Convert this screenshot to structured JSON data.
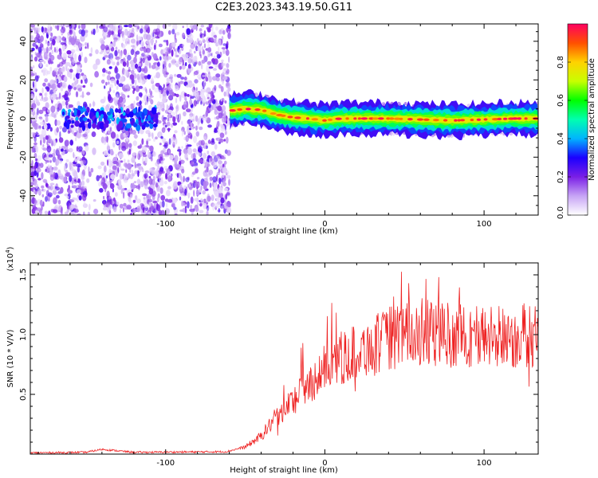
{
  "title": "C2E3.2023.343.19.50.G11",
  "chart_data": [
    {
      "type": "heatmap",
      "xlabel": "Height of straight line (km)",
      "ylabel": "Frequency (Hz)",
      "xlim": [
        -185,
        134
      ],
      "ylim": [
        -50,
        49
      ],
      "x_ticks": [
        -100,
        0,
        100
      ],
      "y_ticks": [
        -40,
        -20,
        0,
        20,
        40
      ],
      "colorbar": {
        "label": "Normalized spectral amplitude",
        "range": [
          0.0,
          1.0
        ],
        "ticks": [
          "0.0",
          "0.2",
          "0.4",
          "0.6",
          "0.8"
        ],
        "colors": [
          "#ffffff",
          "#c7a4f5",
          "#7a1fe6",
          "#1b00ff",
          "#00b4ff",
          "#00ffb0",
          "#00ff00",
          "#c8ff00",
          "#ffd200",
          "#ff5000",
          "#ff0060"
        ]
      },
      "noise_region_x": [
        -185,
        -60
      ],
      "gap_region_x": [
        -150,
        -140
      ],
      "signal_ridge": [
        {
          "x": -60,
          "y": 4
        },
        {
          "x": -50,
          "y": 5
        },
        {
          "x": -40,
          "y": 4.5
        },
        {
          "x": -30,
          "y": 2
        },
        {
          "x": -20,
          "y": 0.5
        },
        {
          "x": -10,
          "y": 0
        },
        {
          "x": 0,
          "y": -1
        },
        {
          "x": 10,
          "y": 0
        },
        {
          "x": 20,
          "y": 0
        },
        {
          "x": 40,
          "y": 0
        },
        {
          "x": 60,
          "y": -0.5
        },
        {
          "x": 80,
          "y": -1
        },
        {
          "x": 100,
          "y": -0.5
        },
        {
          "x": 120,
          "y": 0
        },
        {
          "x": 134,
          "y": 0
        }
      ]
    },
    {
      "type": "line",
      "xlabel": "Height of straight line (km)",
      "ylabel": "SNR (10 * V/V)",
      "multiplier_label": "(x10",
      "multiplier_exp": "4",
      "multiplier_close": ")",
      "xlim": [
        -185,
        134
      ],
      "ylim": [
        0,
        1.6
      ],
      "x_ticks": [
        -100,
        0,
        100
      ],
      "y_ticks": [
        "0.5",
        "1.0",
        "1.5"
      ],
      "line_color": "#ee2222",
      "envelope": [
        {
          "x": -185,
          "y": 0.01
        },
        {
          "x": -150,
          "y": 0.015
        },
        {
          "x": -140,
          "y": 0.04
        },
        {
          "x": -120,
          "y": 0.015
        },
        {
          "x": -62,
          "y": 0.02
        },
        {
          "x": -50,
          "y": 0.06
        },
        {
          "x": -40,
          "y": 0.15
        },
        {
          "x": -30,
          "y": 0.32
        },
        {
          "x": -20,
          "y": 0.45
        },
        {
          "x": -10,
          "y": 0.58
        },
        {
          "x": 0,
          "y": 0.72
        },
        {
          "x": 10,
          "y": 0.8
        },
        {
          "x": 20,
          "y": 0.86
        },
        {
          "x": 30,
          "y": 0.9
        },
        {
          "x": 40,
          "y": 0.97
        },
        {
          "x": 50,
          "y": 1.0
        },
        {
          "x": 60,
          "y": 1.02
        },
        {
          "x": 80,
          "y": 1.0
        },
        {
          "x": 100,
          "y": 0.98
        },
        {
          "x": 120,
          "y": 0.98
        },
        {
          "x": 134,
          "y": 1.0
        }
      ]
    }
  ]
}
